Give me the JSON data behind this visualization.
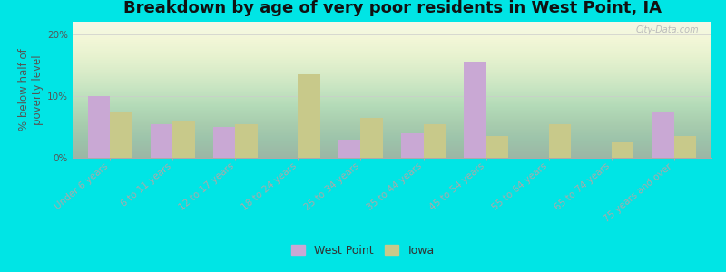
{
  "title": "Breakdown by age of very poor residents in West Point, IA",
  "ylabel": "% below half of\npoverty level",
  "categories": [
    "Under 6 years",
    "6 to 11 years",
    "12 to 17 years",
    "18 to 24 years",
    "25 to 34 years",
    "35 to 44 years",
    "45 to 54 years",
    "55 to 64 years",
    "65 to 74 years",
    "75 years and over"
  ],
  "west_point": [
    10.0,
    5.5,
    5.0,
    0.0,
    3.0,
    4.0,
    15.5,
    0.0,
    0.0,
    7.5
  ],
  "iowa": [
    7.5,
    6.0,
    5.5,
    13.5,
    6.5,
    5.5,
    3.5,
    5.5,
    2.5,
    3.5
  ],
  "west_point_color": "#c9a8d4",
  "iowa_color": "#c8c98a",
  "background_outer": "#00e5e5",
  "ylim": [
    0,
    22
  ],
  "yticks": [
    0,
    10,
    20
  ],
  "ytick_labels": [
    "0%",
    "10%",
    "20%"
  ],
  "bar_width": 0.35,
  "title_fontsize": 13,
  "axis_label_fontsize": 8.5,
  "tick_label_fontsize": 7.5,
  "legend_fontsize": 9,
  "watermark_text": "City-Data.com"
}
